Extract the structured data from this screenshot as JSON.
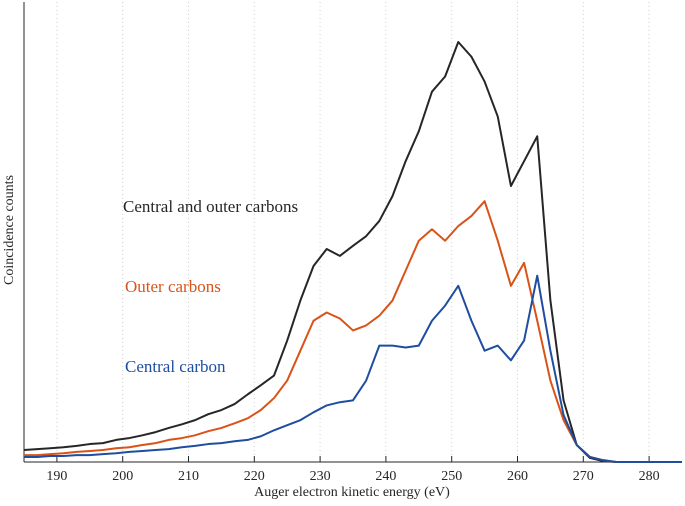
{
  "chart_data": {
    "type": "line",
    "xlabel": "Auger electron kinetic energy (eV)",
    "ylabel": "Coincidence counts",
    "x": [
      185,
      187,
      189,
      191,
      193,
      195,
      197,
      199,
      201,
      203,
      205,
      207,
      209,
      211,
      213,
      215,
      217,
      219,
      221,
      223,
      225,
      227,
      229,
      231,
      233,
      235,
      237,
      239,
      241,
      243,
      245,
      247,
      249,
      251,
      253,
      255,
      257,
      259,
      261,
      263,
      265,
      267,
      269,
      271,
      273,
      275,
      277,
      279,
      281,
      283,
      285
    ],
    "series": [
      {
        "name": "Central and outer carbons",
        "color": "#262626",
        "values": [
          2.6,
          2.8,
          3.0,
          3.2,
          3.5,
          3.9,
          4.1,
          4.8,
          5.2,
          5.8,
          6.5,
          7.4,
          8.2,
          9.1,
          10.4,
          11.3,
          12.6,
          14.7,
          16.7,
          18.8,
          26.4,
          35.1,
          42.6,
          46.3,
          44.8,
          47.0,
          49.1,
          52.4,
          57.8,
          65.4,
          71.9,
          80.5,
          83.8,
          91.3,
          88.1,
          82.7,
          75.1,
          60.0,
          65.4,
          70.8,
          35.1,
          13.4,
          3.7,
          0.9,
          0.2,
          0,
          0,
          0,
          0,
          0,
          0
        ]
      },
      {
        "name": "Outer carbons",
        "color": "#d95319",
        "values": [
          1.5,
          1.5,
          1.7,
          1.9,
          2.2,
          2.4,
          2.6,
          3.0,
          3.2,
          3.7,
          4.1,
          4.8,
          5.2,
          5.8,
          6.7,
          7.4,
          8.4,
          9.5,
          11.3,
          13.9,
          17.7,
          24.2,
          30.7,
          32.5,
          31.2,
          28.6,
          29.7,
          31.8,
          35.1,
          41.6,
          48.1,
          50.6,
          48.1,
          51.3,
          53.5,
          56.7,
          48.1,
          38.3,
          43.3,
          30.7,
          17.7,
          9.1,
          3.7,
          1.1,
          0.4,
          0,
          0,
          0,
          0,
          0,
          0
        ]
      },
      {
        "name": "Central carbon",
        "color": "#1f4ea0",
        "values": [
          1.1,
          1.1,
          1.3,
          1.3,
          1.5,
          1.5,
          1.7,
          1.9,
          2.2,
          2.4,
          2.6,
          2.8,
          3.2,
          3.5,
          3.9,
          4.1,
          4.5,
          4.8,
          5.6,
          6.9,
          8.0,
          9.1,
          10.8,
          12.3,
          13.0,
          13.4,
          17.7,
          25.3,
          25.3,
          24.9,
          25.3,
          30.7,
          34.0,
          38.3,
          30.7,
          24.2,
          25.3,
          22.1,
          26.4,
          40.5,
          24.2,
          10.2,
          3.7,
          1.1,
          0.4,
          0,
          0,
          0,
          0,
          0,
          0
        ]
      }
    ],
    "xlim": [
      185,
      285
    ],
    "xticks": [
      190,
      200,
      210,
      220,
      230,
      240,
      250,
      260,
      270,
      280
    ],
    "ylim": [
      0,
      100
    ],
    "grid": true
  }
}
